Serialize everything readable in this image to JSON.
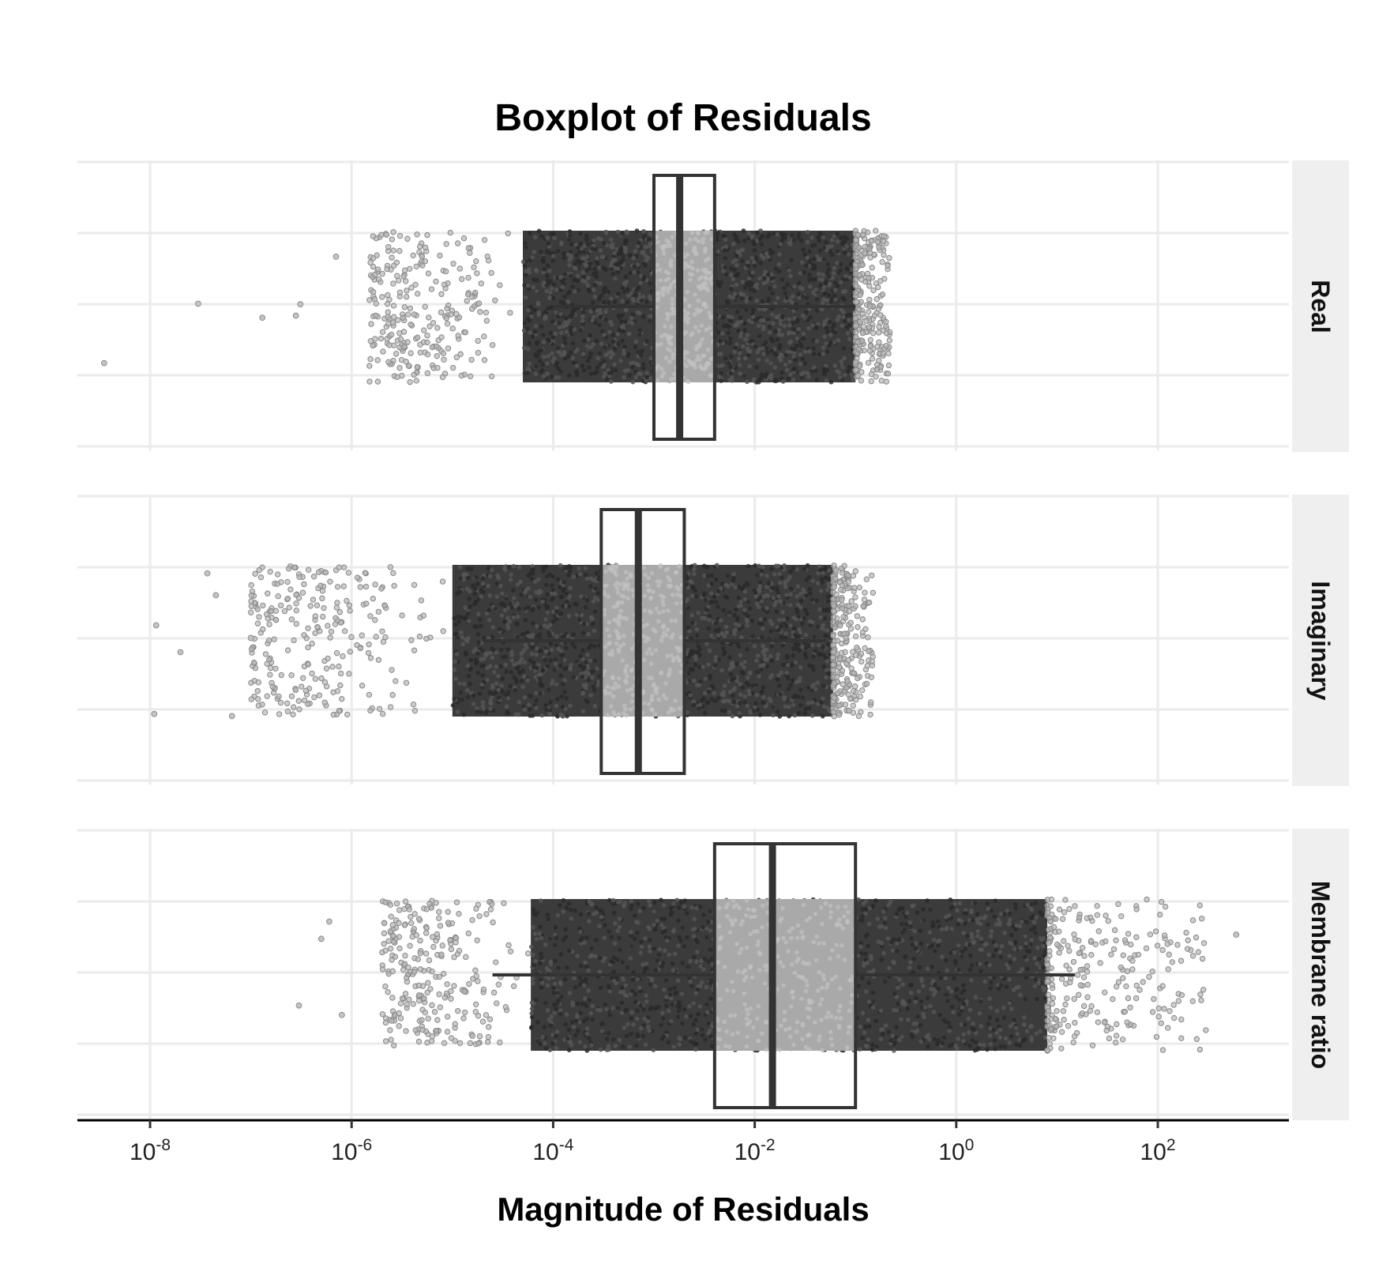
{
  "chart_data": {
    "type": "boxplot",
    "title": "Boxplot of Residuals",
    "xlabel": "Magnitude of Residuals",
    "ylabel": "",
    "x_scale": "log10",
    "xlim": [
      1.9e-09,
      2000
    ],
    "x_ticks": [
      {
        "value": 1e-08,
        "base": "10",
        "exp": "-8"
      },
      {
        "value": 1e-06,
        "base": "10",
        "exp": "-6"
      },
      {
        "value": 0.0001,
        "base": "10",
        "exp": "-4"
      },
      {
        "value": 0.01,
        "base": "10",
        "exp": "-2"
      },
      {
        "value": 1,
        "base": "10",
        "exp": "0"
      },
      {
        "value": 100,
        "base": "10",
        "exp": "2"
      }
    ],
    "grid": true,
    "facet_position": "right",
    "panels": [
      {
        "label": "Real",
        "box": {
          "q1": 0.001,
          "median": 0.0018,
          "q3": 0.004
        },
        "whisker": [
          0.0001,
          0.1
        ],
        "dense_range": [
          5e-05,
          0.1
        ],
        "points_range": [
          1.5e-06,
          0.22
        ],
        "outliers": [
          3.5e-09,
          3e-08,
          1.3e-07,
          2.8e-07,
          3.1e-07,
          7e-07
        ]
      },
      {
        "label": "Imaginary",
        "box": {
          "q1": 0.0003,
          "median": 0.0007,
          "q3": 0.002
        },
        "whisker": [
          2e-05,
          0.05
        ],
        "dense_range": [
          1e-05,
          0.06
        ],
        "points_range": [
          1e-07,
          0.15
        ],
        "outliers": [
          1.1e-08,
          1.15e-08,
          2e-08,
          3.7e-08,
          4.5e-08,
          6.5e-08,
          1e-07
        ]
      },
      {
        "label": "Membrane ratio",
        "box": {
          "q1": 0.004,
          "median": 0.015,
          "q3": 0.1
        },
        "whisker": [
          2.5e-05,
          15
        ],
        "dense_range": [
          6e-05,
          8
        ],
        "points_range": [
          2e-06,
          300
        ],
        "outliers": [
          3e-07,
          5e-07,
          6e-07,
          8e-07,
          600
        ]
      }
    ]
  }
}
